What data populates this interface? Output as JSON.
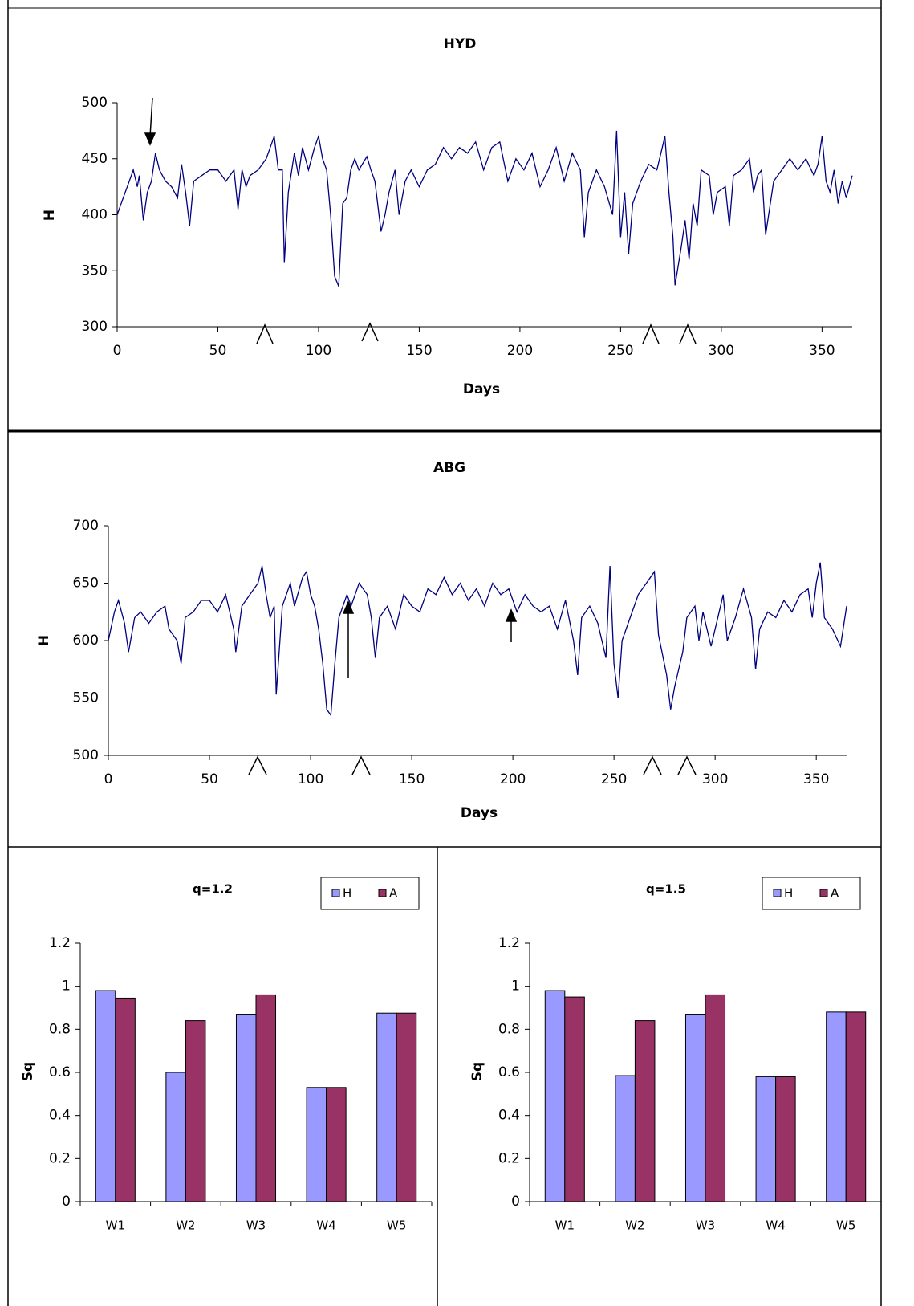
{
  "chart_data": [
    {
      "type": "line",
      "title": "HYD",
      "xlabel": "Days",
      "ylabel": "H",
      "x": [
        0,
        3,
        6,
        8,
        10,
        11,
        13,
        15,
        17,
        19,
        21,
        24,
        27,
        30,
        32,
        34,
        36,
        38,
        42,
        46,
        50,
        54,
        58,
        60,
        62,
        64,
        66,
        70,
        74,
        78,
        80,
        82,
        83,
        85,
        88,
        90,
        92,
        95,
        98,
        100,
        102,
        104,
        106,
        108,
        110,
        112,
        114,
        116,
        118,
        120,
        124,
        126,
        128,
        131,
        133,
        135,
        138,
        140,
        143,
        146,
        150,
        154,
        158,
        162,
        166,
        170,
        174,
        178,
        182,
        186,
        190,
        194,
        198,
        202,
        206,
        210,
        214,
        218,
        222,
        226,
        230,
        232,
        234,
        238,
        242,
        246,
        248,
        250,
        252,
        254,
        256,
        260,
        264,
        268,
        270,
        272,
        274,
        276,
        277,
        280,
        282,
        284,
        286,
        288,
        290,
        294,
        296,
        298,
        302,
        304,
        306,
        310,
        314,
        316,
        318,
        320,
        322,
        326,
        330,
        334,
        338,
        342,
        346,
        348,
        350,
        352,
        354,
        356,
        358,
        360,
        362,
        365
      ],
      "series": [
        {
          "name": "H",
          "color": "#000080",
          "values": [
            400,
            415,
            430,
            440,
            425,
            435,
            395,
            420,
            430,
            455,
            440,
            430,
            425,
            415,
            445,
            420,
            390,
            430,
            435,
            440,
            440,
            430,
            440,
            405,
            440,
            425,
            435,
            440,
            450,
            470,
            440,
            440,
            357,
            420,
            455,
            435,
            460,
            440,
            460,
            470,
            450,
            440,
            400,
            345,
            336,
            410,
            415,
            440,
            450,
            440,
            452,
            440,
            430,
            385,
            400,
            420,
            440,
            400,
            430,
            440,
            425,
            440,
            445,
            460,
            450,
            460,
            455,
            465,
            440,
            460,
            465,
            430,
            450,
            440,
            455,
            425,
            440,
            460,
            430,
            455,
            440,
            380,
            420,
            440,
            425,
            400,
            475,
            380,
            420,
            365,
            410,
            430,
            445,
            440,
            455,
            470,
            420,
            380,
            337,
            370,
            395,
            360,
            410,
            390,
            440,
            435,
            400,
            420,
            425,
            390,
            435,
            440,
            450,
            420,
            435,
            440,
            382,
            430,
            440,
            450,
            440,
            450,
            435,
            445,
            470,
            430,
            420,
            440,
            410,
            430,
            415,
            435
          ]
        }
      ],
      "xlim": [
        0,
        365
      ],
      "xticks": [
        0,
        50,
        100,
        150,
        200,
        250,
        300,
        350
      ],
      "ylim": [
        300,
        500
      ],
      "yticks": [
        300,
        350,
        400,
        450,
        500
      ]
    },
    {
      "type": "line",
      "title": "ABG",
      "xlabel": "Days",
      "ylabel": "H",
      "x": [
        0,
        3,
        5,
        8,
        10,
        13,
        16,
        20,
        24,
        28,
        30,
        34,
        36,
        38,
        42,
        46,
        50,
        54,
        58,
        62,
        63,
        66,
        70,
        74,
        76,
        78,
        80,
        82,
        83,
        86,
        90,
        92,
        96,
        98,
        100,
        102,
        104,
        106,
        108,
        110,
        112,
        114,
        118,
        120,
        124,
        128,
        130,
        132,
        134,
        138,
        142,
        146,
        150,
        154,
        158,
        162,
        166,
        170,
        174,
        178,
        182,
        186,
        190,
        194,
        198,
        202,
        206,
        210,
        214,
        218,
        222,
        226,
        230,
        232,
        234,
        238,
        242,
        246,
        248,
        250,
        252,
        254,
        258,
        262,
        266,
        270,
        272,
        276,
        278,
        280,
        284,
        286,
        290,
        292,
        294,
        298,
        302,
        304,
        306,
        310,
        314,
        318,
        320,
        322,
        326,
        330,
        334,
        338,
        342,
        346,
        348,
        350,
        352,
        354,
        358,
        362,
        365
      ],
      "series": [
        {
          "name": "H",
          "color": "#000080",
          "values": [
            600,
            625,
            635,
            615,
            590,
            620,
            625,
            615,
            625,
            630,
            610,
            600,
            580,
            620,
            625,
            635,
            635,
            625,
            640,
            610,
            590,
            630,
            640,
            650,
            665,
            640,
            620,
            630,
            553,
            630,
            650,
            630,
            655,
            660,
            640,
            630,
            610,
            580,
            540,
            535,
            580,
            620,
            640,
            630,
            650,
            640,
            620,
            585,
            620,
            630,
            610,
            640,
            630,
            625,
            645,
            640,
            655,
            640,
            650,
            635,
            645,
            630,
            650,
            640,
            645,
            625,
            640,
            630,
            625,
            630,
            610,
            635,
            600,
            570,
            620,
            630,
            615,
            585,
            665,
            580,
            550,
            600,
            620,
            640,
            650,
            660,
            605,
            570,
            540,
            560,
            590,
            620,
            630,
            600,
            625,
            595,
            625,
            640,
            600,
            620,
            645,
            620,
            575,
            610,
            625,
            620,
            635,
            625,
            640,
            645,
            620,
            650,
            668,
            620,
            610,
            595,
            630
          ]
        }
      ],
      "xlim": [
        0,
        365
      ],
      "xticks": [
        0,
        50,
        100,
        150,
        200,
        250,
        300,
        350
      ],
      "ylim": [
        500,
        700
      ],
      "yticks": [
        500,
        550,
        600,
        650,
        700
      ]
    },
    {
      "type": "bar",
      "title": "q=1.2",
      "ylabel": "Sq",
      "categories": [
        "W1",
        "W2",
        "W3",
        "W4",
        "W5"
      ],
      "series": [
        {
          "name": "H",
          "color": "#9999ff",
          "values": [
            0.98,
            0.6,
            0.87,
            0.53,
            0.875
          ]
        },
        {
          "name": "A",
          "color": "#993366",
          "values": [
            0.945,
            0.84,
            0.96,
            0.53,
            0.875
          ]
        }
      ],
      "ylim": [
        0,
        1.2
      ],
      "yticks": [
        0,
        0.2,
        0.4,
        0.6,
        0.8,
        1,
        1.2
      ]
    },
    {
      "type": "bar",
      "title": "q=1.5",
      "ylabel": "Sq",
      "categories": [
        "W1",
        "W2",
        "W3",
        "W4",
        "W5"
      ],
      "series": [
        {
          "name": "H",
          "color": "#9999ff",
          "values": [
            0.98,
            0.585,
            0.87,
            0.58,
            0.88
          ]
        },
        {
          "name": "A",
          "color": "#993366",
          "values": [
            0.95,
            0.84,
            0.96,
            0.58,
            0.88
          ]
        }
      ],
      "ylim": [
        0,
        1.2
      ],
      "yticks": [
        0,
        0.2,
        0.4,
        0.6,
        0.8,
        1,
        1.2
      ]
    }
  ]
}
